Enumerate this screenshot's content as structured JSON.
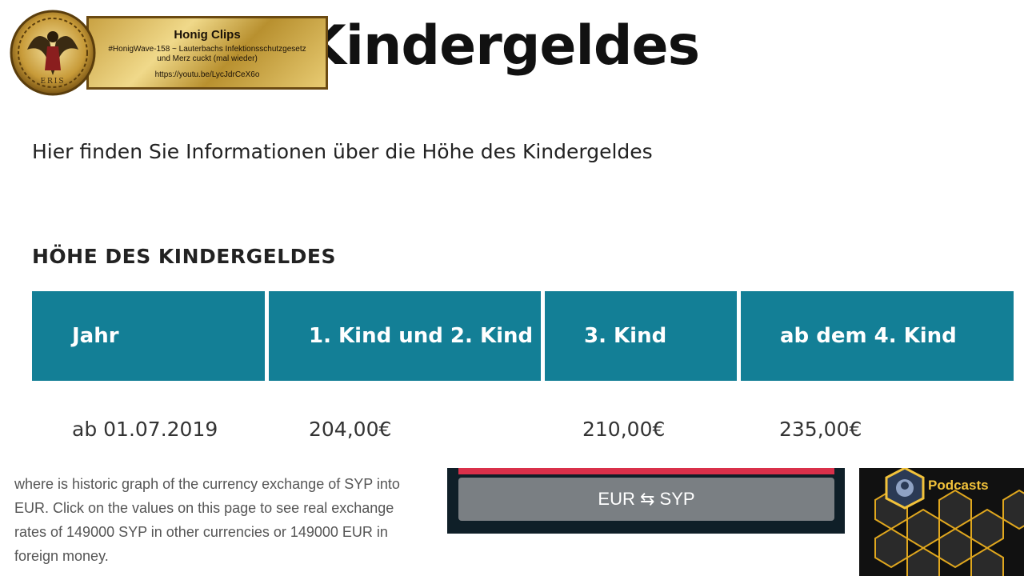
{
  "page": {
    "heading": "Kindergeldes",
    "intro": "Hier finden Sie Informationen über die Höhe des Kindergeldes",
    "section_title": "HÖHE DES KINDERGELDES"
  },
  "table": {
    "headers": [
      "Jahr",
      "1. Kind und 2. Kind",
      "3. Kind",
      "ab dem 4. Kind"
    ],
    "rows": [
      [
        "ab 01.07.2019",
        "204,00€",
        "210,00€",
        "235,00€"
      ]
    ]
  },
  "overlay": {
    "title": "Honig Clips",
    "subtitle_line1": "#HonigWave-158 ~ Lauterbachs Infektionsschutzgesetz",
    "subtitle_line2": "und Merz cuckt (mal wieder)",
    "url": "https://youtu.be/LycJdrCeX6o",
    "logo_text": "ERIS",
    "icon": "eris-medallion-icon"
  },
  "caption": {
    "text": "where is historic graph of the currency exchange of SYP into EUR. Click on the values on this page to see real exchange rates of 149000 SYP in other currencies or 149000 EUR in foreign money."
  },
  "converter": {
    "button_label": "EUR ⇆ SYP"
  },
  "podcasts": {
    "label": "Podcasts",
    "icon": "podcast-badge-icon"
  },
  "colors": {
    "table_header": "#137f96",
    "gold": "#c9a243",
    "widget_red": "#d9304a",
    "podcast_yellow": "#f2c23a"
  }
}
